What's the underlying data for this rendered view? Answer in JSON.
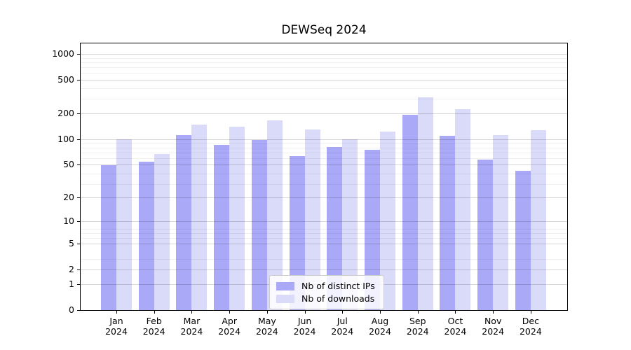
{
  "title": "DEWSeq 2024",
  "year": "2024",
  "chart_data": {
    "type": "bar",
    "title": "DEWSeq 2024",
    "categories": [
      "Jan 2024",
      "Feb 2024",
      "Mar 2024",
      "Apr 2024",
      "May 2024",
      "Jun 2024",
      "Jul 2024",
      "Aug 2024",
      "Sep 2024",
      "Oct 2024",
      "Nov 2024",
      "Dec 2024"
    ],
    "month_names": [
      "Jan",
      "Feb",
      "Mar",
      "Apr",
      "May",
      "Jun",
      "Jul",
      "Aug",
      "Sep",
      "Oct",
      "Nov",
      "Dec"
    ],
    "series": [
      {
        "name": "Nb of distinct IPs",
        "color": "#a9a9f7",
        "values": [
          49,
          54,
          111,
          85,
          97,
          63,
          81,
          75,
          193,
          110,
          57,
          42
        ]
      },
      {
        "name": "Nb of downloads",
        "color": "#dadaf9",
        "values": [
          100,
          66,
          148,
          140,
          166,
          131,
          99,
          122,
          313,
          224,
          111,
          128
        ]
      }
    ],
    "yscale": "log10(1+v)",
    "yticks": [
      1000,
      500,
      200,
      100,
      50,
      20,
      10,
      5,
      2,
      1,
      0
    ],
    "ylim": [
      0,
      1400
    ],
    "grid": "horizontal, major + faint minor log lines",
    "legend_position": "lower center",
    "xlabel": "",
    "ylabel": ""
  },
  "colors": {
    "bar_ips": "#a9a9f7",
    "bar_downloads": "#dadaf9",
    "grid_major": "rgba(0,0,0,0.16)",
    "grid_minor": "rgba(0,0,0,0.055)",
    "spine": "#000000",
    "legend_border": "#cccccc"
  }
}
